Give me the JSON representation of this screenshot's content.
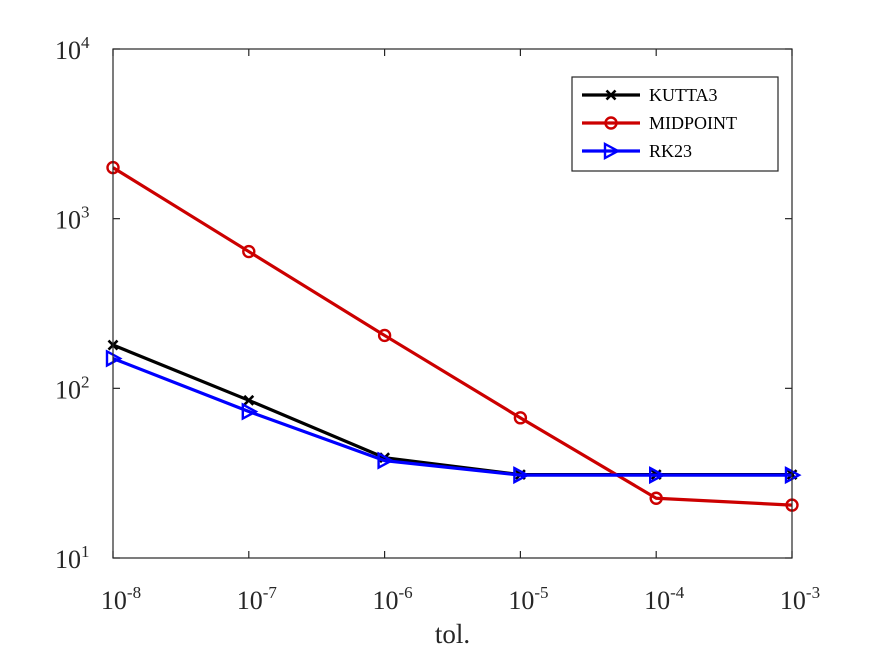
{
  "chart_data": {
    "type": "line",
    "x_scale": "log",
    "y_scale": "log",
    "x": [
      1e-08,
      1e-07,
      1e-06,
      1e-05,
      0.0001,
      0.001
    ],
    "xlim": [
      1e-08,
      0.001
    ],
    "ylim": [
      10,
      10000
    ],
    "xlabel": "tol.",
    "ylabel": "",
    "title": "",
    "grid": false,
    "legend_position": "top-right",
    "x_ticks": [
      {
        "base": "10",
        "exp": "-8"
      },
      {
        "base": "10",
        "exp": "-7"
      },
      {
        "base": "10",
        "exp": "-6"
      },
      {
        "base": "10",
        "exp": "-5"
      },
      {
        "base": "10",
        "exp": "-4"
      },
      {
        "base": "10",
        "exp": "-3"
      }
    ],
    "y_ticks": [
      {
        "base": "10",
        "exp": "1"
      },
      {
        "base": "10",
        "exp": "2"
      },
      {
        "base": "10",
        "exp": "3"
      },
      {
        "base": "10",
        "exp": "4"
      }
    ],
    "series": [
      {
        "name": "KUTTA3",
        "color": "#000000",
        "marker": "x",
        "values": [
          180,
          85,
          39,
          31,
          31,
          31
        ]
      },
      {
        "name": "MIDPOINT",
        "color": "#cc0000",
        "marker": "o",
        "values": [
          2000,
          640,
          205,
          67,
          22.5,
          20.5
        ]
      },
      {
        "name": "RK23",
        "color": "#0000ff",
        "marker": "triangle-right",
        "values": [
          150,
          73,
          37.5,
          30.8,
          30.8,
          30.8
        ]
      }
    ]
  }
}
